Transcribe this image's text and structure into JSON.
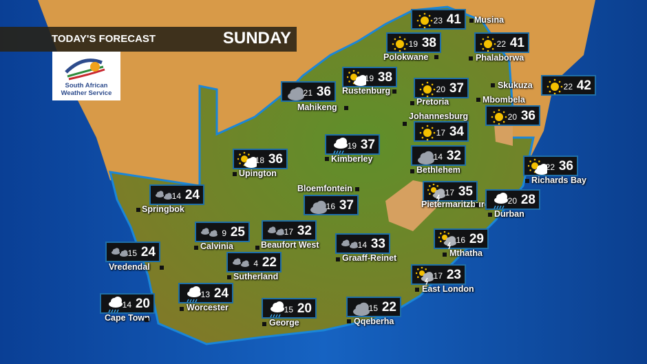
{
  "header": {
    "title": "TODAY'S FORECAST",
    "day": "SUNDAY"
  },
  "logo": {
    "line1": "South African",
    "line2": "Weather Service"
  },
  "colors": {
    "ocean": "#0d4fa8",
    "land_green": "#6e8a2a",
    "land_orange": "#d79a45",
    "box_bg": "#111214",
    "box_border": "#1f6fa8"
  },
  "cities": [
    {
      "name": "Musina",
      "icon": "sun",
      "min": "23",
      "max": "41"
    },
    {
      "name": "Polokwane",
      "icon": "sun",
      "min": "19",
      "max": "38"
    },
    {
      "name": "Phalaborwa",
      "icon": "sun",
      "min": "22",
      "max": "41"
    },
    {
      "name": "Rustenburg",
      "icon": "partly-cloudy",
      "min": "19",
      "max": "38"
    },
    {
      "name": "Mahikeng",
      "icon": "cloud",
      "min": "21",
      "max": "36"
    },
    {
      "name": "Pretoria",
      "icon": "sun",
      "min": "20",
      "max": "37"
    },
    {
      "name": "Skukuza",
      "icon": "sun",
      "min": "22",
      "max": "42"
    },
    {
      "name": "Mbombela",
      "icon": "sun",
      "min": "20",
      "max": "36"
    },
    {
      "name": "Johannesburg",
      "icon": "sun",
      "min": "17",
      "max": "34"
    },
    {
      "name": "Kimberley",
      "icon": "rain",
      "min": "19",
      "max": "37"
    },
    {
      "name": "Upington",
      "icon": "partly-cloudy",
      "min": "18",
      "max": "36"
    },
    {
      "name": "Bethlehem",
      "icon": "cloud",
      "min": "14",
      "max": "32"
    },
    {
      "name": "Richards Bay",
      "icon": "partly-cloudy",
      "min": "22",
      "max": "36"
    },
    {
      "name": "Springbok",
      "icon": "two-clouds",
      "min": "14",
      "max": "24"
    },
    {
      "name": "Bloemfontein",
      "icon": "cloud",
      "min": "16",
      "max": "37"
    },
    {
      "name": "Pietermaritzburg",
      "icon": "thunder-sun",
      "min": "17",
      "max": "35"
    },
    {
      "name": "Durban",
      "icon": "rain",
      "min": "20",
      "max": "28"
    },
    {
      "name": "Calvinia",
      "icon": "two-clouds",
      "min": "9",
      "max": "25"
    },
    {
      "name": "Beaufort West",
      "icon": "two-clouds",
      "min": "17",
      "max": "32"
    },
    {
      "name": "Sutherland",
      "icon": "two-clouds",
      "min": "4",
      "max": "22"
    },
    {
      "name": "Graaff-Reinet",
      "icon": "two-clouds",
      "min": "14",
      "max": "33"
    },
    {
      "name": "Mthatha",
      "icon": "thunder-sun",
      "min": "16",
      "max": "29"
    },
    {
      "name": "Vredendal",
      "icon": "two-clouds",
      "min": "15",
      "max": "24"
    },
    {
      "name": "East London",
      "icon": "thunder-sun",
      "min": "17",
      "max": "23"
    },
    {
      "name": "Worcester",
      "icon": "rain",
      "min": "13",
      "max": "24"
    },
    {
      "name": "Cape Town",
      "icon": "rain",
      "min": "14",
      "max": "20"
    },
    {
      "name": "George",
      "icon": "rain",
      "min": "15",
      "max": "20"
    },
    {
      "name": "Qqeberha",
      "icon": "cloud",
      "min": "15",
      "max": "22"
    }
  ]
}
